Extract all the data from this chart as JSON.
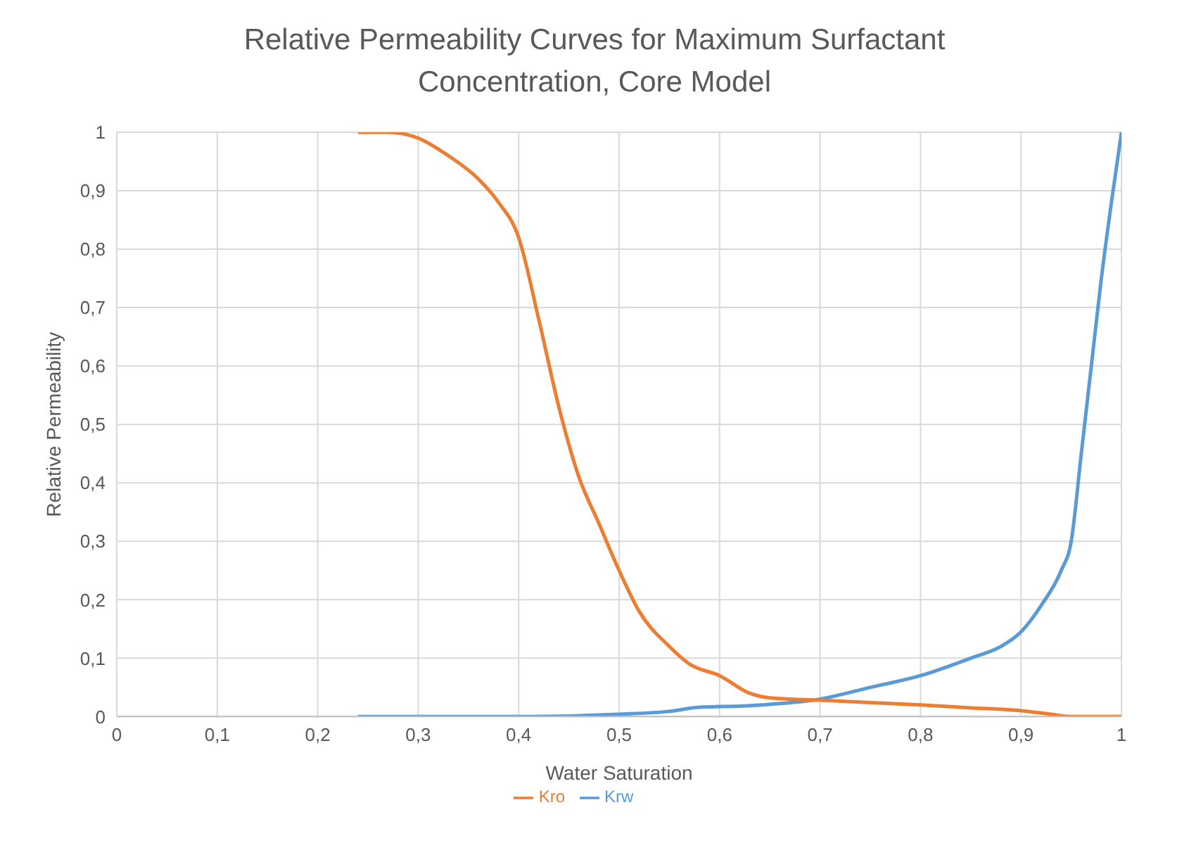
{
  "chart_data": {
    "type": "line",
    "title": "Relative Permeability Curves for Maximum Surfactant Concentration, Core Model",
    "xlabel": "Water Saturation",
    "ylabel": "Relative Permeability",
    "xlim": [
      0,
      1
    ],
    "ylim": [
      0,
      1
    ],
    "xticks": [
      0,
      {
        "value": 0.1,
        "label": "0,1"
      },
      {
        "value": 0.2,
        "label": "0,2"
      },
      {
        "value": 0.3,
        "label": "0,3"
      },
      {
        "value": 0.4,
        "label": "0,4"
      },
      {
        "value": 0.5,
        "label": "0,5"
      },
      {
        "value": 0.6,
        "label": "0,6"
      },
      {
        "value": 0.7,
        "label": "0,7"
      },
      {
        "value": 0.8,
        "label": "0,8"
      },
      {
        "value": 0.9,
        "label": "0,9"
      },
      1
    ],
    "yticks": [
      0,
      {
        "value": 0.1,
        "label": "0,1"
      },
      {
        "value": 0.2,
        "label": "0,2"
      },
      {
        "value": 0.3,
        "label": "0,3"
      },
      {
        "value": 0.4,
        "label": "0,4"
      },
      {
        "value": 0.5,
        "label": "0,5"
      },
      {
        "value": 0.6,
        "label": "0,6"
      },
      {
        "value": 0.7,
        "label": "0,7"
      },
      {
        "value": 0.8,
        "label": "0,8"
      },
      {
        "value": 0.9,
        "label": "0,9"
      },
      1
    ],
    "grid": true,
    "legend": "bottom",
    "marker": "none",
    "line_style": "solid",
    "series": [
      {
        "name": "Krw",
        "color": "#5b9bd5",
        "x": [
          0.24,
          0.4,
          0.5,
          0.55,
          0.58,
          0.62,
          0.65,
          0.7,
          0.75,
          0.8,
          0.85,
          0.88,
          0.9,
          0.92,
          0.94,
          0.95,
          0.96,
          0.97,
          0.98,
          0.99,
          1
        ],
        "values": [
          0,
          0,
          0.004,
          0.009,
          0.016,
          0.018,
          0.021,
          0.03,
          0.05,
          0.07,
          0.1,
          0.12,
          0.145,
          0.19,
          0.25,
          0.3,
          0.45,
          0.6,
          0.75,
          0.88,
          1
        ]
      },
      {
        "name": "Kro",
        "color": "#ed7d31",
        "x": [
          0.24,
          0.27,
          0.3,
          0.33,
          0.36,
          0.38,
          0.4,
          0.42,
          0.44,
          0.46,
          0.48,
          0.5,
          0.52,
          0.55,
          0.57,
          0.6,
          0.63,
          0.65,
          0.7,
          0.75,
          0.8,
          0.85,
          0.9,
          0.93,
          0.95,
          1
        ],
        "values": [
          1,
          1,
          0.99,
          0.96,
          0.92,
          0.88,
          0.82,
          0.68,
          0.53,
          0.41,
          0.33,
          0.25,
          0.18,
          0.12,
          0.09,
          0.07,
          0.04,
          0.032,
          0.028,
          0.024,
          0.02,
          0.015,
          0.01,
          0.004,
          0,
          0
        ]
      }
    ]
  }
}
